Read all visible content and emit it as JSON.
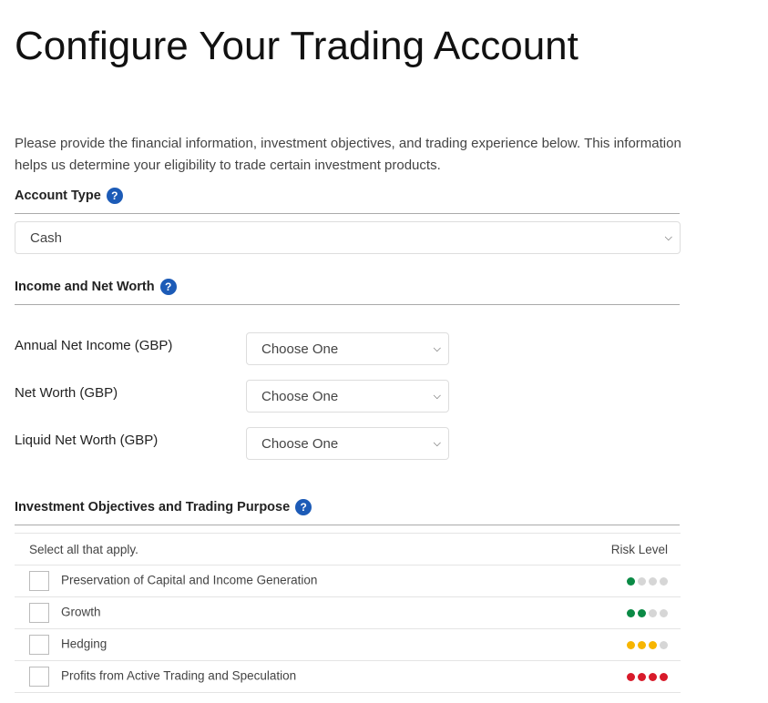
{
  "title": "Configure Your Trading Account",
  "intro": "Please provide the financial information, investment objectives, and trading experience below. This information helps us determine your eligibility to trade certain investment products.",
  "account_type": {
    "heading": "Account Type",
    "value": "Cash"
  },
  "income": {
    "heading": "Income and Net Worth",
    "fields": [
      {
        "label": "Annual Net Income (GBP)",
        "value": "Choose One"
      },
      {
        "label": "Net Worth (GBP)",
        "value": "Choose One"
      },
      {
        "label": "Liquid Net Worth (GBP)",
        "value": "Choose One"
      }
    ]
  },
  "objectives": {
    "heading": "Investment Objectives and Trading Purpose",
    "select_label": "Select all that apply.",
    "risk_label": "Risk Level",
    "rows": [
      {
        "label": "Preservation of Capital and Income Generation",
        "risk": 1,
        "color": "#0a8a45"
      },
      {
        "label": "Growth",
        "risk": 2,
        "color": "#0a8a45"
      },
      {
        "label": "Hedging",
        "risk": 3,
        "color": "#f7b500"
      },
      {
        "label": "Profits from Active Trading and Speculation",
        "risk": 4,
        "color": "#d81a2a"
      }
    ]
  }
}
